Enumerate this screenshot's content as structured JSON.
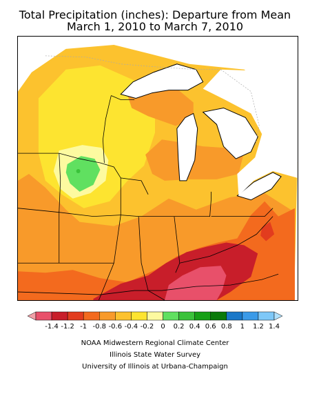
{
  "title_line1": "Total Precipitation (inches): Departure from Mean",
  "title_line2": "March 1, 2010 to March 7, 2010",
  "legend": {
    "labels": [
      "-1.4",
      "-1.2",
      "-1",
      "-0.8",
      "-0.6",
      "-0.4",
      "-0.2",
      "0",
      "0.2",
      "0.4",
      "0.6",
      "0.8",
      "1",
      "1.2",
      "1.4"
    ],
    "colors": [
      "#f2a0a8",
      "#e8506a",
      "#c81e2a",
      "#e23c1e",
      "#f36a1e",
      "#f89a2a",
      "#fcc22e",
      "#fde430",
      "#fdfaa0",
      "#60e060",
      "#3ac23a",
      "#16a016",
      "#0a7a0a",
      "#1a78c8",
      "#3a9ae8",
      "#7ec8f8",
      "#b0e0fc"
    ]
  },
  "credits": [
    "NOAA Midwestern Regional Climate Center",
    "Illinois State Water Survey",
    "University of Illinois at Urbana-Champaign"
  ]
}
